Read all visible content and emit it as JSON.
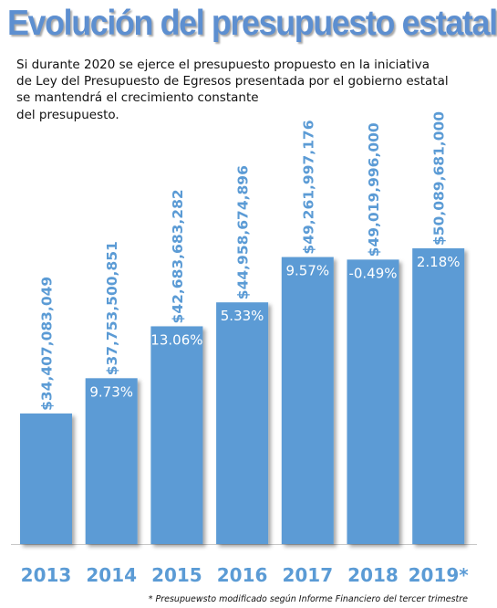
{
  "title": "Evolución del presupuesto estatal",
  "subtitle_lines": [
    "Si durante 2020 se ejerce el presupuesto propuesto en la iniciativa",
    "de Ley del Presupuesto de Egresos presentada por el gobierno estatal",
    "se mantendrá el crecimiento constante",
    "del presupuesto."
  ],
  "footnote": "* Presupuewsto modificado según Informe Financiero del tercer trimestre",
  "colors": {
    "bar": "#5b9bd5",
    "value_text": "#5b9bd5",
    "year_text": "#5b9bd5",
    "title": "#5d8fd0"
  },
  "chart_data": {
    "type": "bar",
    "categories": [
      "2013",
      "2014",
      "2015",
      "2016",
      "2017",
      "2018",
      "2019*"
    ],
    "values": [
      34407083049,
      37753500851,
      42683683282,
      44958674896,
      49261997176,
      49019996000,
      50089681000
    ],
    "value_labels": [
      "$34,407,083,049",
      "$37,753,500,851",
      "$42,683,683,282",
      "$44,958,674,896",
      "$49,261,997,176",
      "$49,019,996,000",
      "$50,089,681,000"
    ],
    "growth_labels": [
      "",
      "9.73%",
      "13.06%",
      "5.33%",
      "9.57%",
      "-0.49%",
      "2.18%"
    ],
    "ylim": [
      22000000000,
      52000000000
    ],
    "grid": false,
    "legend": "none"
  }
}
